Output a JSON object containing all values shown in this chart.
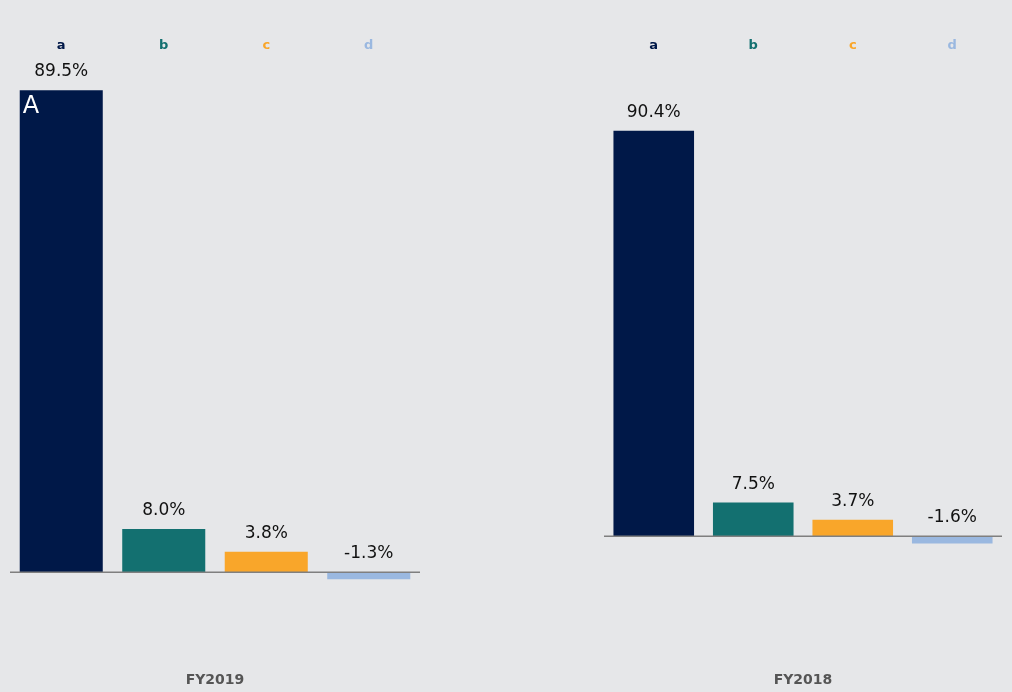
{
  "chart_data": [
    {
      "type": "bar",
      "categories": [
        "a",
        "b",
        "c",
        "d"
      ],
      "xlabel": "FY2019",
      "data_labels": true,
      "legend": false,
      "grid": false,
      "tick_labels": "x",
      "annotations": [
        "A"
      ],
      "values": [
        89.5,
        8.0,
        3.8,
        -1.3
      ],
      "colors": [
        "#001848",
        "#137070",
        "#f9a62a",
        "#9ab8e0"
      ],
      "value_labels": [
        "89.5%",
        "8.0%",
        "3.8%",
        "-1.3%"
      ],
      "ref_lines": [
        {
          "axis": "y",
          "value": 0,
          "color": "#7f7f7f"
        }
      ]
    },
    {
      "type": "bar",
      "categories": [
        "a",
        "b",
        "c",
        "d"
      ],
      "xlabel": "FY2018",
      "data_labels": true,
      "legend": false,
      "grid": false,
      "tick_labels": "x",
      "values": [
        90.4,
        7.5,
        3.7,
        -1.6
      ],
      "colors": [
        "#001848",
        "#137070",
        "#f9a62a",
        "#9ab8e0"
      ],
      "value_labels": [
        "90.4%",
        "7.5%",
        "3.7%",
        "-1.6%"
      ],
      "ref_lines": [
        {
          "axis": "y",
          "value": 0,
          "color": "#7f7f7f"
        }
      ]
    }
  ]
}
